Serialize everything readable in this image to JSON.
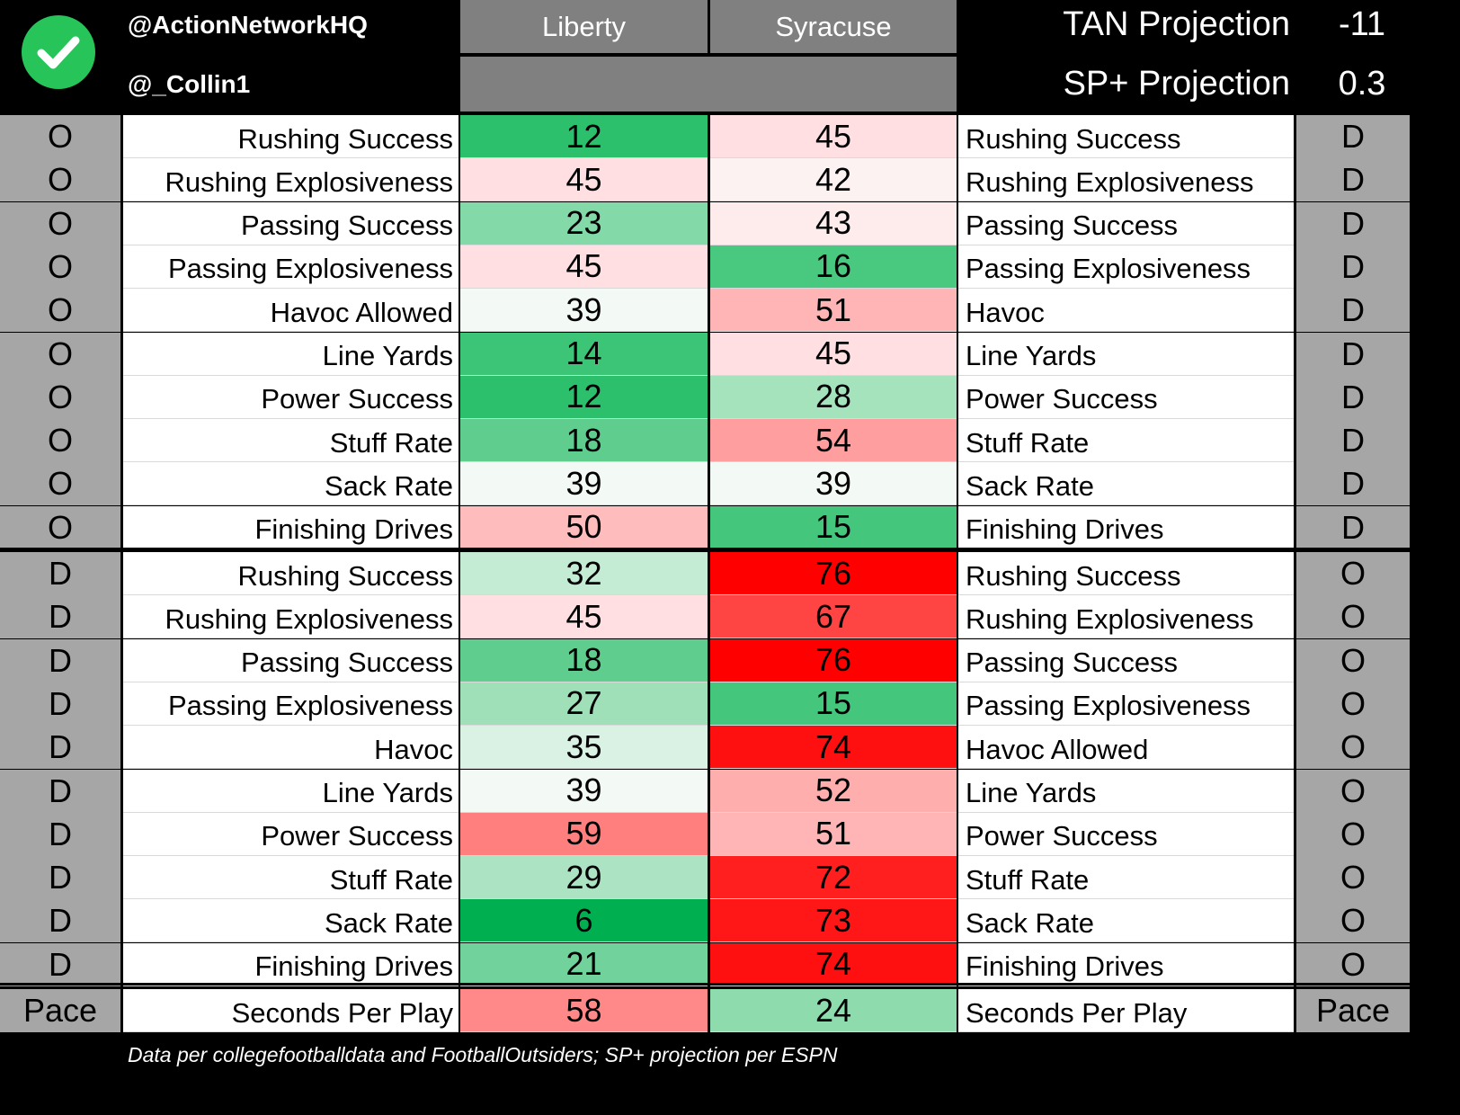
{
  "header": {
    "handle1": "@ActionNetworkHQ",
    "handle2": "@_Collin1",
    "team_left": "Liberty",
    "team_right": "Syracuse",
    "projections": [
      {
        "label": "TAN Projection",
        "value": "-11"
      },
      {
        "label": "SP+ Projection",
        "value": "0.3"
      }
    ],
    "check_icon": "checkmark-circle-icon",
    "check_color": "#27c45a"
  },
  "rows": [
    {
      "left_side": "O",
      "left_label": "Rushing Success",
      "left_val": "12",
      "right_val": "45",
      "right_label": "Rushing Success",
      "right_side": "D",
      "left_color": "#2cc06c",
      "right_color": "#ffdfe2"
    },
    {
      "left_side": "O",
      "left_label": "Rushing Explosiveness",
      "left_val": "45",
      "right_val": "42",
      "right_label": "Rushing Explosiveness",
      "right_side": "D",
      "left_color": "#ffdfe2",
      "right_color": "#fdf2f2"
    },
    {
      "left_side": "O",
      "left_label": "Passing Success",
      "left_val": "23",
      "right_val": "43",
      "right_label": "Passing Success",
      "right_side": "D",
      "left_color": "#83d9a7",
      "right_color": "#feeced"
    },
    {
      "left_side": "O",
      "left_label": "Passing Explosiveness",
      "left_val": "45",
      "right_val": "16",
      "right_label": "Passing Explosiveness",
      "right_side": "D",
      "left_color": "#ffdfe2",
      "right_color": "#49c87f"
    },
    {
      "left_side": "O",
      "left_label": "Havoc Allowed",
      "left_val": "39",
      "right_val": "51",
      "right_label": "Havoc",
      "right_side": "D",
      "left_color": "#f3faf5",
      "right_color": "#ffb5b5"
    },
    {
      "left_side": "O",
      "left_label": "Line Yards",
      "left_val": "14",
      "right_val": "45",
      "right_label": "Line Yards",
      "right_side": "D",
      "left_color": "#3cc477",
      "right_color": "#ffdfe2"
    },
    {
      "left_side": "O",
      "left_label": "Power Success",
      "left_val": "12",
      "right_val": "28",
      "right_label": "Power Success",
      "right_side": "D",
      "left_color": "#2cc06c",
      "right_color": "#a5e3bd"
    },
    {
      "left_side": "O",
      "left_label": "Stuff Rate",
      "left_val": "18",
      "right_val": "54",
      "right_label": "Stuff Rate",
      "right_side": "D",
      "left_color": "#5ecd8d",
      "right_color": "#ff9e9e"
    },
    {
      "left_side": "O",
      "left_label": "Sack Rate",
      "left_val": "39",
      "right_val": "39",
      "right_label": "Sack Rate",
      "right_side": "D",
      "left_color": "#f3faf5",
      "right_color": "#f3faf5"
    },
    {
      "left_side": "O",
      "left_label": "Finishing Drives",
      "left_val": "50",
      "right_val": "15",
      "right_label": "Finishing Drives",
      "right_side": "D",
      "left_color": "#ffbcbc",
      "right_color": "#44c67c"
    },
    {
      "left_side": "D",
      "left_label": "Rushing Success",
      "left_val": "32",
      "right_val": "76",
      "right_label": "Rushing Success",
      "right_side": "O",
      "left_color": "#c4ecd4",
      "right_color": "#ff0000"
    },
    {
      "left_side": "D",
      "left_label": "Rushing Explosiveness",
      "left_val": "45",
      "right_val": "67",
      "right_label": "Rushing Explosiveness",
      "right_side": "O",
      "left_color": "#ffdfe2",
      "right_color": "#ff4444"
    },
    {
      "left_side": "D",
      "left_label": "Passing Success",
      "left_val": "18",
      "right_val": "76",
      "right_label": "Passing Success",
      "right_side": "O",
      "left_color": "#5ecd8d",
      "right_color": "#ff0000"
    },
    {
      "left_side": "D",
      "left_label": "Passing Explosiveness",
      "left_val": "27",
      "right_val": "15",
      "right_label": "Passing Explosiveness",
      "right_side": "O",
      "left_color": "#a0e0b9",
      "right_color": "#44c67c"
    },
    {
      "left_side": "D",
      "left_label": "Havoc",
      "left_val": "35",
      "right_val": "74",
      "right_label": "Havoc Allowed",
      "right_side": "O",
      "left_color": "#d9f2e3",
      "right_color": "#ff1010"
    },
    {
      "left_side": "D",
      "left_label": "Line Yards",
      "left_val": "39",
      "right_val": "52",
      "right_label": "Line Yards",
      "right_side": "O",
      "left_color": "#f3faf5",
      "right_color": "#ffaeae"
    },
    {
      "left_side": "D",
      "left_label": "Power Success",
      "left_val": "59",
      "right_val": "51",
      "right_label": "Power Success",
      "right_side": "O",
      "left_color": "#ff7f7f",
      "right_color": "#ffb5b5"
    },
    {
      "left_side": "D",
      "left_label": "Stuff Rate",
      "left_val": "29",
      "right_val": "72",
      "right_label": "Stuff Rate",
      "right_side": "O",
      "left_color": "#ace3c2",
      "right_color": "#ff1f1f"
    },
    {
      "left_side": "D",
      "left_label": "Sack Rate",
      "left_val": "6",
      "right_val": "73",
      "right_label": "Sack Rate",
      "right_side": "O",
      "left_color": "#00b050",
      "right_color": "#ff1717"
    },
    {
      "left_side": "D",
      "left_label": "Finishing Drives",
      "left_val": "21",
      "right_val": "74",
      "right_label": "Finishing Drives",
      "right_side": "O",
      "left_color": "#72d29b",
      "right_color": "#ff1010"
    },
    {
      "left_side": "Pace",
      "left_label": "Seconds Per Play",
      "left_val": "58",
      "right_val": "24",
      "right_label": "Seconds Per Play",
      "right_side": "Pace",
      "left_color": "#ff8888",
      "right_color": "#8edcae"
    }
  ],
  "footnote": "Data per collegefootballdata and FootballOutsiders; SP+ projection per ESPN"
}
